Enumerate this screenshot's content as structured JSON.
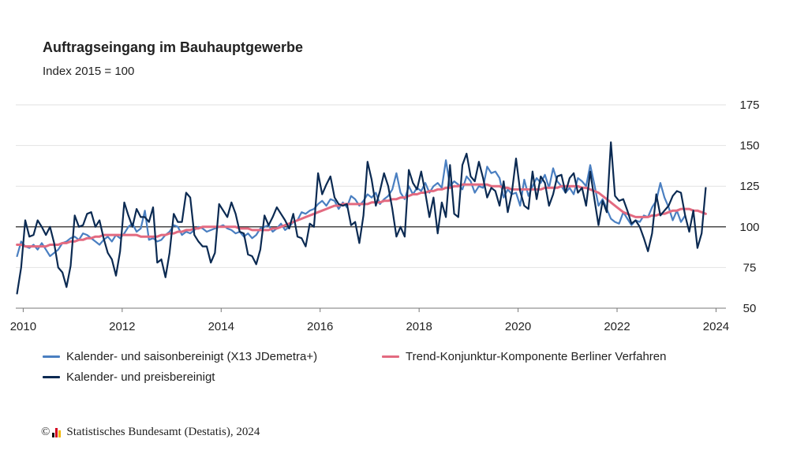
{
  "header": {
    "title": "Auftragseingang im Bauhauptgewerbe",
    "subtitle": "Index 2015 = 100"
  },
  "footer": {
    "copyright_symbol": "©",
    "source": "Statistisches Bundesamt (Destatis), 2024"
  },
  "colors": {
    "seasonal": "#4a7fc1",
    "price": "#0b2a52",
    "trend": "#e36a80",
    "logo": [
      "#111111",
      "#d4001f",
      "#f2b700"
    ]
  },
  "chart_data": {
    "type": "line",
    "title": "Auftragseingang im Bauhauptgewerbe",
    "subtitle": "Index 2015 = 100",
    "xlim": [
      2009.85,
      2024.2
    ],
    "ylim": [
      50,
      175
    ],
    "x_ticks": [
      "2010",
      "2012",
      "2014",
      "2016",
      "2018",
      "2020",
      "2022",
      "2024"
    ],
    "y_ticks": [
      "50",
      "75",
      "100",
      "125",
      "150",
      "175"
    ],
    "reference_line": 100,
    "grid": "horizontal",
    "y_axis_side": "right",
    "legend_position": "bottom",
    "legend": {
      "seasonal": "Kalender- und saisonbereinigt (X13 JDemetra+)",
      "trend": "Trend-Konjunktur-Komponente Berliner Verfahren",
      "price": "Kalender- und preisbereinigt"
    },
    "series": [
      {
        "name": "Kalender- und saisonbereinigt (X13 JDemetra+)",
        "key": "seasonal",
        "x_start": 2009.875,
        "x_step": 0.0833333,
        "values": [
          82,
          91,
          88,
          87,
          89,
          86,
          90,
          86,
          82,
          84,
          86,
          90,
          91,
          93,
          94,
          92,
          96,
          95,
          93,
          91,
          89,
          92,
          94,
          91,
          95,
          93,
          96,
          100,
          102,
          97,
          99,
          110,
          92,
          93,
          91,
          92,
          95,
          97,
          101,
          100,
          95,
          97,
          96,
          98,
          100,
          99,
          97,
          98,
          99,
          100,
          101,
          99,
          98,
          96,
          97,
          94,
          96,
          93,
          95,
          99,
          100,
          101,
          97,
          99,
          102,
          98,
          100,
          103,
          104,
          109,
          108,
          110,
          111,
          114,
          116,
          113,
          117,
          116,
          111,
          115,
          112,
          119,
          117,
          113,
          116,
          120,
          118,
          121,
          114,
          117,
          119,
          123,
          133,
          121,
          117,
          125,
          120,
          124,
          122,
          127,
          121,
          125,
          127,
          124,
          141,
          125,
          128,
          126,
          123,
          131,
          128,
          121,
          125,
          124,
          137,
          133,
          134,
          130,
          118,
          123,
          120,
          121,
          113,
          129,
          119,
          125,
          130,
          127,
          132,
          124,
          136,
          128,
          125,
          121,
          124,
          120,
          130,
          128,
          125,
          138,
          126,
          113,
          117,
          111,
          105,
          103,
          102,
          109,
          105,
          101,
          104,
          103,
          107,
          106,
          112,
          116,
          127,
          118,
          112,
          104,
          110,
          103,
          107
        ]
      },
      {
        "name": "Trend-Konjunktur-Komponente Berliner Verfahren",
        "key": "trend",
        "x_start": 2009.875,
        "x_step": 0.0833333,
        "values": [
          89,
          89,
          88,
          88,
          88,
          88,
          88,
          88,
          89,
          89,
          89,
          90,
          90,
          91,
          91,
          92,
          92,
          93,
          93,
          94,
          94,
          95,
          95,
          95,
          95,
          95,
          95,
          95,
          95,
          95,
          94,
          94,
          94,
          94,
          94,
          95,
          95,
          96,
          96,
          97,
          97,
          98,
          98,
          99,
          99,
          100,
          100,
          100,
          100,
          100,
          100,
          100,
          100,
          100,
          99,
          99,
          99,
          98,
          98,
          98,
          98,
          98,
          99,
          99,
          100,
          101,
          102,
          103,
          104,
          105,
          106,
          107,
          108,
          109,
          110,
          111,
          112,
          113,
          113,
          114,
          114,
          114,
          114,
          114,
          114,
          114,
          115,
          115,
          115,
          116,
          116,
          117,
          117,
          118,
          118,
          119,
          120,
          120,
          121,
          121,
          122,
          122,
          123,
          123,
          124,
          124,
          125,
          125,
          126,
          126,
          126,
          126,
          126,
          126,
          126,
          125,
          125,
          125,
          124,
          124,
          123,
          123,
          123,
          123,
          123,
          123,
          123,
          123,
          124,
          124,
          124,
          124,
          125,
          125,
          125,
          125,
          125,
          124,
          124,
          123,
          122,
          121,
          119,
          117,
          115,
          113,
          111,
          109,
          108,
          107,
          106,
          106,
          106,
          106,
          107,
          107,
          108,
          108,
          109,
          110,
          110,
          111,
          111,
          111,
          110,
          110,
          109,
          108
        ]
      },
      {
        "name": "Kalender- und preisbereinigt",
        "key": "price",
        "x_start": 2009.875,
        "x_step": 0.0833333,
        "values": [
          59,
          75,
          104,
          94,
          95,
          104,
          100,
          95,
          100,
          90,
          75,
          72,
          63,
          76,
          107,
          100,
          101,
          108,
          109,
          100,
          104,
          93,
          84,
          80,
          70,
          85,
          115,
          107,
          100,
          111,
          106,
          106,
          103,
          112,
          78,
          80,
          69,
          84,
          108,
          103,
          103,
          121,
          118,
          95,
          91,
          88,
          88,
          78,
          84,
          114,
          110,
          106,
          115,
          108,
          97,
          96,
          83,
          82,
          77,
          86,
          107,
          101,
          106,
          112,
          108,
          104,
          99,
          108,
          94,
          93,
          88,
          102,
          100,
          133,
          120,
          126,
          131,
          118,
          114,
          113,
          114,
          101,
          103,
          90,
          107,
          140,
          129,
          113,
          122,
          133,
          125,
          111,
          94,
          100,
          94,
          135,
          127,
          123,
          134,
          121,
          106,
          118,
          96,
          115,
          106,
          138,
          108,
          106,
          138,
          145,
          131,
          128,
          140,
          130,
          118,
          124,
          122,
          113,
          128,
          109,
          121,
          142,
          122,
          113,
          111,
          134,
          117,
          131,
          127,
          113,
          120,
          131,
          132,
          121,
          130,
          133,
          121,
          124,
          113,
          134,
          117,
          101,
          116,
          109,
          152,
          119,
          116,
          117,
          110,
          102,
          104,
          100,
          93,
          85,
          96,
          120,
          107,
          110,
          113,
          119,
          122,
          121,
          107,
          97,
          110,
          87,
          96,
          124
        ]
      }
    ]
  }
}
